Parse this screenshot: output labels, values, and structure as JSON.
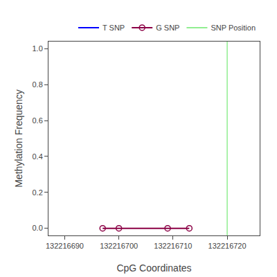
{
  "chart_data": {
    "type": "line",
    "xlabel": "CpG Coordinates",
    "ylabel": "Methylation Frequency",
    "xlim": [
      132216687,
      132216726
    ],
    "ylim": [
      -0.04,
      1.04
    ],
    "xticks": [
      132216690,
      132216700,
      132216710,
      132216720
    ],
    "yticks": [
      {
        "value": 0.0,
        "label": "0.0"
      },
      0.2,
      0.4,
      0.6,
      0.8,
      {
        "value": 1.0,
        "label": "1.0"
      }
    ],
    "series": [
      {
        "name": "T SNP",
        "color": "blue",
        "x": [],
        "values": []
      },
      {
        "name": "G SNP",
        "color": "#8B0045",
        "marker": "circle",
        "x": [
          132216697,
          132216700,
          132216709,
          132216713
        ],
        "values": [
          0.0,
          0.0,
          0.0,
          0.0
        ]
      },
      {
        "name": "SNP Position",
        "type": "vline",
        "color": "#90EE90",
        "x": [
          132216720
        ]
      }
    ],
    "legend": "upper right",
    "grid": false
  }
}
